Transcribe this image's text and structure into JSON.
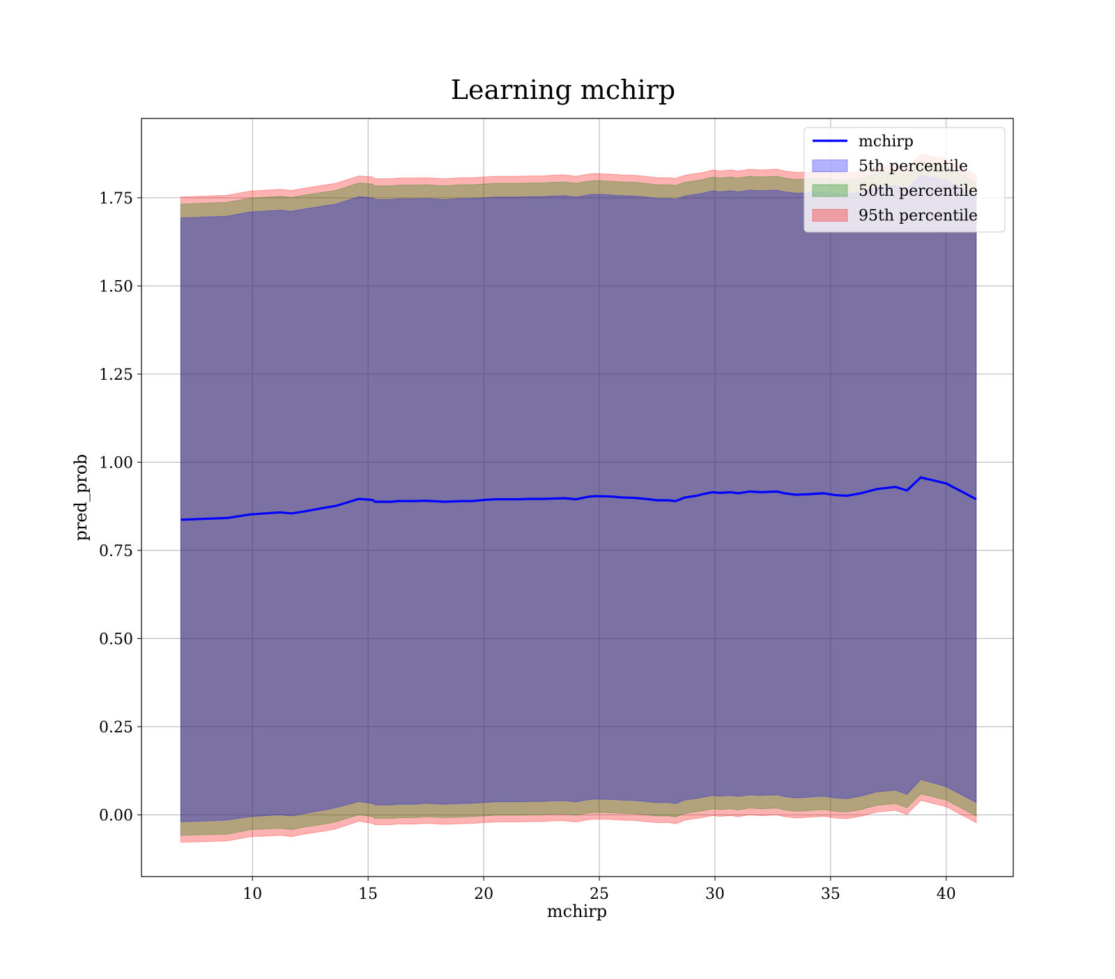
{
  "chart_data": {
    "type": "line",
    "title": "Learning mchirp",
    "xlabel": "mchirp",
    "ylabel": "pred_prob",
    "xlim": [
      5.2,
      42.9
    ],
    "ylim": [
      -0.175,
      1.975
    ],
    "xticks": [
      10,
      15,
      20,
      25,
      30,
      35,
      40
    ],
    "xtick_labels": [
      "10",
      "15",
      "20",
      "25",
      "30",
      "35",
      "40"
    ],
    "yticks": [
      0,
      0.25,
      0.5,
      0.75,
      1.0,
      1.25,
      1.5,
      1.75
    ],
    "ytick_labels": [
      "0.00",
      "0.25",
      "0.50",
      "0.75",
      "1.00",
      "1.25",
      "1.50",
      "1.75"
    ],
    "grid": true,
    "legend_position": "top-right",
    "x": [
      6.9,
      8.9,
      9.9,
      11.2,
      11.7,
      12.2,
      13.2,
      13.6,
      14.6,
      15.2,
      15.3,
      16.0,
      16.3,
      17.0,
      17.5,
      18.3,
      19.0,
      19.5,
      20.0,
      20.5,
      21.0,
      21.5,
      22.0,
      22.5,
      23.0,
      23.5,
      24.0,
      24.5,
      24.8,
      25.5,
      26.0,
      26.5,
      27.0,
      27.5,
      28.0,
      28.3,
      28.7,
      29.2,
      29.5,
      29.9,
      30.2,
      30.7,
      31.0,
      31.5,
      32.0,
      32.7,
      33.0,
      33.5,
      34.0,
      34.7,
      35.2,
      35.7,
      36.3,
      37.0,
      37.8,
      38.3,
      38.9,
      40.0,
      41.3
    ],
    "series": [
      {
        "name": "mchirp",
        "kind": "line",
        "color": "#0000ff",
        "values": [
          0.837,
          0.842,
          0.852,
          0.858,
          0.855,
          0.86,
          0.872,
          0.876,
          0.896,
          0.893,
          0.888,
          0.888,
          0.89,
          0.89,
          0.891,
          0.888,
          0.89,
          0.89,
          0.893,
          0.895,
          0.895,
          0.895,
          0.896,
          0.896,
          0.897,
          0.898,
          0.895,
          0.902,
          0.904,
          0.903,
          0.9,
          0.899,
          0.896,
          0.892,
          0.892,
          0.89,
          0.9,
          0.905,
          0.91,
          0.915,
          0.913,
          0.915,
          0.912,
          0.917,
          0.915,
          0.917,
          0.912,
          0.908,
          0.909,
          0.912,
          0.907,
          0.905,
          0.912,
          0.924,
          0.93,
          0.92,
          0.957,
          0.94,
          0.895
        ]
      },
      {
        "name": "5th percentile",
        "kind": "band",
        "color": "#0000ff",
        "opacity": 0.3,
        "lower": [
          -0.02,
          -0.015,
          -0.005,
          0.0,
          -0.003,
          0.003,
          0.015,
          0.02,
          0.038,
          0.032,
          0.028,
          0.028,
          0.03,
          0.03,
          0.033,
          0.03,
          0.032,
          0.033,
          0.035,
          0.037,
          0.037,
          0.037,
          0.038,
          0.038,
          0.04,
          0.04,
          0.037,
          0.043,
          0.045,
          0.044,
          0.042,
          0.041,
          0.038,
          0.035,
          0.035,
          0.032,
          0.042,
          0.047,
          0.05,
          0.055,
          0.053,
          0.055,
          0.052,
          0.057,
          0.055,
          0.057,
          0.052,
          0.048,
          0.05,
          0.053,
          0.048,
          0.046,
          0.053,
          0.065,
          0.07,
          0.058,
          0.1,
          0.08,
          0.035
        ],
        "upper": [
          1.693,
          1.698,
          1.71,
          1.715,
          1.712,
          1.718,
          1.728,
          1.732,
          1.753,
          1.75,
          1.745,
          1.745,
          1.747,
          1.747,
          1.748,
          1.745,
          1.748,
          1.748,
          1.75,
          1.752,
          1.752,
          1.752,
          1.753,
          1.753,
          1.755,
          1.756,
          1.752,
          1.758,
          1.76,
          1.758,
          1.756,
          1.755,
          1.752,
          1.748,
          1.748,
          1.746,
          1.755,
          1.76,
          1.763,
          1.77,
          1.767,
          1.77,
          1.767,
          1.772,
          1.77,
          1.772,
          1.767,
          1.763,
          1.764,
          1.767,
          1.762,
          1.76,
          1.767,
          1.78,
          1.785,
          1.775,
          1.815,
          1.8,
          1.755
        ]
      },
      {
        "name": "50th percentile",
        "kind": "band",
        "color": "#008000",
        "opacity": 0.3,
        "lower": [
          -0.058,
          -0.055,
          -0.042,
          -0.038,
          -0.042,
          -0.035,
          -0.025,
          -0.02,
          0.0,
          -0.005,
          -0.01,
          -0.01,
          -0.008,
          -0.008,
          -0.005,
          -0.008,
          -0.006,
          -0.005,
          -0.003,
          -0.001,
          -0.001,
          -0.001,
          0.0,
          0.0,
          0.002,
          0.002,
          -0.001,
          0.005,
          0.007,
          0.006,
          0.004,
          0.003,
          0.0,
          -0.003,
          -0.003,
          -0.006,
          0.004,
          0.009,
          0.012,
          0.017,
          0.015,
          0.017,
          0.014,
          0.019,
          0.017,
          0.019,
          0.014,
          0.01,
          0.012,
          0.015,
          0.01,
          0.008,
          0.015,
          0.027,
          0.032,
          0.02,
          0.06,
          0.042,
          -0.003
        ],
        "upper": [
          1.732,
          1.737,
          1.749,
          1.754,
          1.751,
          1.757,
          1.767,
          1.771,
          1.792,
          1.789,
          1.784,
          1.784,
          1.786,
          1.786,
          1.787,
          1.784,
          1.787,
          1.787,
          1.789,
          1.791,
          1.791,
          1.791,
          1.792,
          1.792,
          1.794,
          1.795,
          1.791,
          1.797,
          1.799,
          1.797,
          1.795,
          1.794,
          1.791,
          1.787,
          1.787,
          1.785,
          1.794,
          1.799,
          1.802,
          1.809,
          1.806,
          1.809,
          1.806,
          1.811,
          1.809,
          1.811,
          1.806,
          1.802,
          1.803,
          1.806,
          1.801,
          1.799,
          1.806,
          1.819,
          1.824,
          1.814,
          1.854,
          1.839,
          1.794
        ]
      },
      {
        "name": "95th percentile",
        "kind": "band",
        "color": "#ff0000",
        "opacity": 0.3,
        "lower": [
          -0.078,
          -0.074,
          -0.062,
          -0.058,
          -0.062,
          -0.055,
          -0.045,
          -0.04,
          -0.018,
          -0.024,
          -0.028,
          -0.028,
          -0.026,
          -0.026,
          -0.024,
          -0.027,
          -0.025,
          -0.024,
          -0.022,
          -0.02,
          -0.02,
          -0.02,
          -0.019,
          -0.019,
          -0.017,
          -0.017,
          -0.02,
          -0.014,
          -0.012,
          -0.013,
          -0.015,
          -0.016,
          -0.019,
          -0.022,
          -0.022,
          -0.025,
          -0.015,
          -0.01,
          -0.007,
          -0.002,
          -0.004,
          -0.002,
          -0.005,
          0.0,
          -0.002,
          0.0,
          -0.005,
          -0.009,
          -0.007,
          -0.004,
          -0.009,
          -0.011,
          -0.004,
          0.008,
          0.013,
          0.001,
          0.041,
          0.023,
          -0.022
        ],
        "upper": [
          1.752,
          1.757,
          1.769,
          1.774,
          1.771,
          1.777,
          1.787,
          1.791,
          1.812,
          1.809,
          1.804,
          1.804,
          1.806,
          1.806,
          1.807,
          1.804,
          1.807,
          1.807,
          1.809,
          1.811,
          1.811,
          1.811,
          1.812,
          1.812,
          1.814,
          1.815,
          1.811,
          1.817,
          1.819,
          1.817,
          1.815,
          1.814,
          1.811,
          1.807,
          1.807,
          1.805,
          1.814,
          1.819,
          1.822,
          1.829,
          1.826,
          1.829,
          1.826,
          1.831,
          1.829,
          1.831,
          1.826,
          1.822,
          1.823,
          1.826,
          1.821,
          1.819,
          1.826,
          1.839,
          1.844,
          1.834,
          1.874,
          1.859,
          1.814
        ]
      }
    ]
  }
}
